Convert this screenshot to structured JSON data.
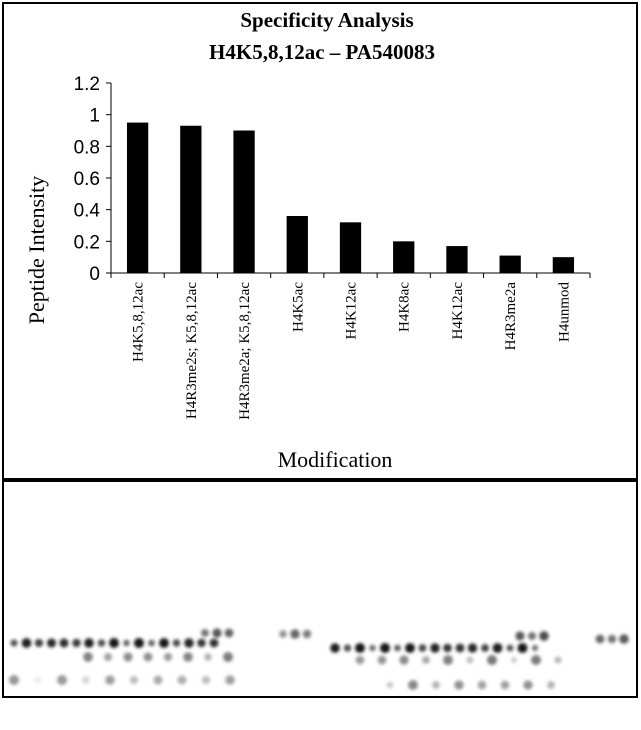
{
  "chart_data": {
    "type": "bar",
    "title": "Specificity Analysis",
    "subtitle": "H4K5,8,12ac – PA540083",
    "x_label": "Modification",
    "y_label": "Peptide Intensity",
    "categories": [
      "H4K5,8,12ac",
      "H4R3me2s; K5,8,12ac",
      "H4R3me2a; K5,8,12ac",
      "H4K5ac",
      "H4K12ac",
      "H4K8ac",
      "H4K12ac",
      "H4R3me2a",
      "H4unmod"
    ],
    "values": [
      0.95,
      0.93,
      0.9,
      0.36,
      0.32,
      0.2,
      0.17,
      0.11,
      0.1
    ],
    "color": "#000000",
    "ylim": [
      0,
      1.2
    ],
    "yticks": [
      0,
      0.2,
      0.4,
      0.6,
      0.8,
      1,
      1.2
    ],
    "grid": false
  }
}
